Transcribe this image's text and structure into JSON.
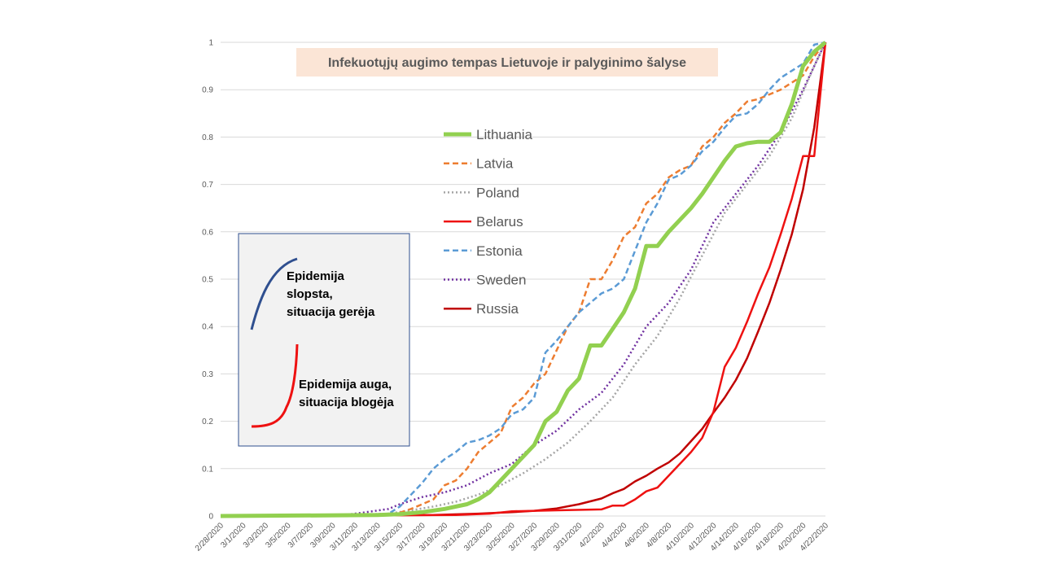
{
  "chart_data": {
    "type": "line",
    "title": "Infekuotųjų augimo tempas Lietuvoje ir palyginimo šalyse",
    "xlabel": "",
    "ylabel": "",
    "ylim": [
      0,
      1
    ],
    "y_ticks": [
      "0",
      "0.1",
      "0.2",
      "0.3",
      "0.4",
      "0.5",
      "0.6",
      "0.7",
      "0.8",
      "0.9",
      "1"
    ],
    "x_start": "2/28/2020",
    "x_end": "4/22/2020",
    "x_tick_labels": [
      "2/28/2020",
      "3/1/2020",
      "3/3/2020",
      "3/5/2020",
      "3/7/2020",
      "3/9/2020",
      "3/11/2020",
      "3/13/2020",
      "3/15/2020",
      "3/17/2020",
      "3/19/2020",
      "3/21/2020",
      "3/23/2020",
      "3/25/2020",
      "3/27/2020",
      "3/29/2020",
      "3/31/2020",
      "4/2/2020",
      "4/4/2020",
      "4/6/2020",
      "4/8/2020",
      "4/10/2020",
      "4/12/2020",
      "4/14/2020",
      "4/16/2020",
      "4/18/2020",
      "4/20/2020",
      "4/22/2020"
    ],
    "grid": true,
    "legend_position": "center",
    "series": [
      {
        "name": "Lithuania",
        "color": "#92D050",
        "style": "solid-thick",
        "points": [
          [
            "2/28/2020",
            0
          ],
          [
            "3/13/2020",
            0.002
          ],
          [
            "3/15/2020",
            0.004
          ],
          [
            "3/17/2020",
            0.008
          ],
          [
            "3/19/2020",
            0.015
          ],
          [
            "3/21/2020",
            0.025
          ],
          [
            "3/22/2020",
            0.035
          ],
          [
            "3/23/2020",
            0.05
          ],
          [
            "3/24/2020",
            0.075
          ],
          [
            "3/25/2020",
            0.1
          ],
          [
            "3/27/2020",
            0.15
          ],
          [
            "3/28/2020",
            0.2
          ],
          [
            "3/29/2020",
            0.22
          ],
          [
            "3/30/2020",
            0.265
          ],
          [
            "3/31/2020",
            0.29
          ],
          [
            "4/1/2020",
            0.36
          ],
          [
            "4/2/2020",
            0.36
          ],
          [
            "4/3/2020",
            0.395
          ],
          [
            "4/4/2020",
            0.43
          ],
          [
            "4/5/2020",
            0.48
          ],
          [
            "4/6/2020",
            0.57
          ],
          [
            "4/7/2020",
            0.57
          ],
          [
            "4/8/2020",
            0.6
          ],
          [
            "4/10/2020",
            0.65
          ],
          [
            "4/11/2020",
            0.68
          ],
          [
            "4/13/2020",
            0.75
          ],
          [
            "4/14/2020",
            0.78
          ],
          [
            "4/15/2020",
            0.787
          ],
          [
            "4/16/2020",
            0.79
          ],
          [
            "4/17/2020",
            0.79
          ],
          [
            "4/18/2020",
            0.81
          ],
          [
            "4/19/2020",
            0.87
          ],
          [
            "4/20/2020",
            0.95
          ],
          [
            "4/21/2020",
            0.98
          ],
          [
            "4/22/2020",
            1
          ]
        ]
      },
      {
        "name": "Latvia",
        "color": "#ED7D31",
        "style": "dashed",
        "points": [
          [
            "2/28/2020",
            0
          ],
          [
            "3/14/2020",
            0.002
          ],
          [
            "3/15/2020",
            0.007
          ],
          [
            "3/16/2020",
            0.015
          ],
          [
            "3/17/2020",
            0.025
          ],
          [
            "3/18/2020",
            0.035
          ],
          [
            "3/19/2020",
            0.065
          ],
          [
            "3/20/2020",
            0.075
          ],
          [
            "3/21/2020",
            0.1
          ],
          [
            "3/22/2020",
            0.135
          ],
          [
            "3/23/2020",
            0.155
          ],
          [
            "3/24/2020",
            0.175
          ],
          [
            "3/25/2020",
            0.23
          ],
          [
            "3/26/2020",
            0.25
          ],
          [
            "3/27/2020",
            0.28
          ],
          [
            "3/28/2020",
            0.3
          ],
          [
            "3/29/2020",
            0.35
          ],
          [
            "3/30/2020",
            0.4
          ],
          [
            "3/31/2020",
            0.43
          ],
          [
            "4/1/2020",
            0.5
          ],
          [
            "4/2/2020",
            0.5
          ],
          [
            "4/3/2020",
            0.54
          ],
          [
            "4/4/2020",
            0.59
          ],
          [
            "4/5/2020",
            0.61
          ],
          [
            "4/6/2020",
            0.66
          ],
          [
            "4/7/2020",
            0.68
          ],
          [
            "4/8/2020",
            0.715
          ],
          [
            "4/9/2020",
            0.73
          ],
          [
            "4/10/2020",
            0.74
          ],
          [
            "4/11/2020",
            0.78
          ],
          [
            "4/12/2020",
            0.8
          ],
          [
            "4/13/2020",
            0.83
          ],
          [
            "4/14/2020",
            0.85
          ],
          [
            "4/15/2020",
            0.875
          ],
          [
            "4/16/2020",
            0.88
          ],
          [
            "4/17/2020",
            0.89
          ],
          [
            "4/18/2020",
            0.9
          ],
          [
            "4/19/2020",
            0.915
          ],
          [
            "4/20/2020",
            0.93
          ],
          [
            "4/21/2020",
            0.97
          ],
          [
            "4/22/2020",
            1
          ]
        ]
      },
      {
        "name": "Poland",
        "color": "#A5A5A5",
        "style": "dotted",
        "points": [
          [
            "2/28/2020",
            0
          ],
          [
            "3/4/2020",
            0
          ],
          [
            "3/10/2020",
            0.002
          ],
          [
            "3/14/2020",
            0.005
          ],
          [
            "3/16/2020",
            0.012
          ],
          [
            "3/18/2020",
            0.02
          ],
          [
            "3/20/2020",
            0.03
          ],
          [
            "3/22/2020",
            0.045
          ],
          [
            "3/24/2020",
            0.065
          ],
          [
            "3/26/2020",
            0.09
          ],
          [
            "3/28/2020",
            0.12
          ],
          [
            "3/30/2020",
            0.155
          ],
          [
            "4/1/2020",
            0.2
          ],
          [
            "4/3/2020",
            0.25
          ],
          [
            "4/5/2020",
            0.32
          ],
          [
            "4/7/2020",
            0.38
          ],
          [
            "4/9/2020",
            0.46
          ],
          [
            "4/11/2020",
            0.55
          ],
          [
            "4/13/2020",
            0.64
          ],
          [
            "4/15/2020",
            0.7
          ],
          [
            "4/17/2020",
            0.76
          ],
          [
            "4/19/2020",
            0.84
          ],
          [
            "4/21/2020",
            0.95
          ],
          [
            "4/22/2020",
            1
          ]
        ]
      },
      {
        "name": "Belarus",
        "color": "#EE1111",
        "style": "solid",
        "points": [
          [
            "2/28/2020",
            0
          ],
          [
            "3/20/2020",
            0.002
          ],
          [
            "3/23/2020",
            0.005
          ],
          [
            "3/25/2020",
            0.01
          ],
          [
            "3/29/2020",
            0.012
          ],
          [
            "4/2/2020",
            0.014
          ],
          [
            "4/3/2020",
            0.022
          ],
          [
            "4/4/2020",
            0.022
          ],
          [
            "4/5/2020",
            0.035
          ],
          [
            "4/6/2020",
            0.052
          ],
          [
            "4/7/2020",
            0.06
          ],
          [
            "4/8/2020",
            0.085
          ],
          [
            "4/9/2020",
            0.11
          ],
          [
            "4/10/2020",
            0.135
          ],
          [
            "4/11/2020",
            0.165
          ],
          [
            "4/12/2020",
            0.22
          ],
          [
            "4/13/2020",
            0.315
          ],
          [
            "4/14/2020",
            0.355
          ],
          [
            "4/15/2020",
            0.41
          ],
          [
            "4/16/2020",
            0.47
          ],
          [
            "4/17/2020",
            0.525
          ],
          [
            "4/18/2020",
            0.595
          ],
          [
            "4/19/2020",
            0.67
          ],
          [
            "4/20/2020",
            0.76
          ],
          [
            "4/21/2020",
            0.76
          ],
          [
            "4/21/2020",
            0.76
          ],
          [
            "4/22/2020",
            1
          ]
        ]
      },
      {
        "name": "Estonia",
        "color": "#5B9BD5",
        "style": "dashed",
        "points": [
          [
            "2/28/2020",
            0
          ],
          [
            "3/3/2020",
            0.001
          ],
          [
            "3/13/2020",
            0.002
          ],
          [
            "3/14/2020",
            0.005
          ],
          [
            "3/15/2020",
            0.02
          ],
          [
            "3/16/2020",
            0.045
          ],
          [
            "3/17/2020",
            0.07
          ],
          [
            "3/18/2020",
            0.1
          ],
          [
            "3/19/2020",
            0.12
          ],
          [
            "3/20/2020",
            0.135
          ],
          [
            "3/21/2020",
            0.155
          ],
          [
            "3/22/2020",
            0.16
          ],
          [
            "3/23/2020",
            0.17
          ],
          [
            "3/24/2020",
            0.185
          ],
          [
            "3/25/2020",
            0.215
          ],
          [
            "3/26/2020",
            0.225
          ],
          [
            "3/27/2020",
            0.25
          ],
          [
            "3/28/2020",
            0.345
          ],
          [
            "3/29/2020",
            0.37
          ],
          [
            "3/30/2020",
            0.4
          ],
          [
            "3/31/2020",
            0.43
          ],
          [
            "4/1/2020",
            0.45
          ],
          [
            "4/2/2020",
            0.47
          ],
          [
            "4/3/2020",
            0.48
          ],
          [
            "4/4/2020",
            0.5
          ],
          [
            "4/5/2020",
            0.56
          ],
          [
            "4/6/2020",
            0.62
          ],
          [
            "4/7/2020",
            0.66
          ],
          [
            "4/8/2020",
            0.71
          ],
          [
            "4/9/2020",
            0.72
          ],
          [
            "4/10/2020",
            0.74
          ],
          [
            "4/11/2020",
            0.77
          ],
          [
            "4/12/2020",
            0.79
          ],
          [
            "4/13/2020",
            0.82
          ],
          [
            "4/14/2020",
            0.845
          ],
          [
            "4/15/2020",
            0.85
          ],
          [
            "4/16/2020",
            0.87
          ],
          [
            "4/17/2020",
            0.9
          ],
          [
            "4/18/2020",
            0.925
          ],
          [
            "4/19/2020",
            0.94
          ],
          [
            "4/20/2020",
            0.955
          ],
          [
            "4/21/2020",
            0.995
          ],
          [
            "4/22/2020",
            1
          ]
        ]
      },
      {
        "name": "Sweden",
        "color": "#7030A0",
        "style": "dotted",
        "points": [
          [
            "2/28/2020",
            0
          ],
          [
            "3/10/2020",
            0.002
          ],
          [
            "3/12/2020",
            0.008
          ],
          [
            "3/14/2020",
            0.015
          ],
          [
            "3/15/2020",
            0.025
          ],
          [
            "3/17/2020",
            0.04
          ],
          [
            "3/19/2020",
            0.05
          ],
          [
            "3/21/2020",
            0.065
          ],
          [
            "3/23/2020",
            0.09
          ],
          [
            "3/25/2020",
            0.11
          ],
          [
            "3/27/2020",
            0.15
          ],
          [
            "3/29/2020",
            0.18
          ],
          [
            "3/31/2020",
            0.225
          ],
          [
            "4/2/2020",
            0.26
          ],
          [
            "4/4/2020",
            0.32
          ],
          [
            "4/6/2020",
            0.4
          ],
          [
            "4/8/2020",
            0.45
          ],
          [
            "4/10/2020",
            0.52
          ],
          [
            "4/12/2020",
            0.62
          ],
          [
            "4/14/2020",
            0.68
          ],
          [
            "4/16/2020",
            0.74
          ],
          [
            "4/18/2020",
            0.81
          ],
          [
            "4/20/2020",
            0.9
          ],
          [
            "4/22/2020",
            1
          ]
        ]
      },
      {
        "name": "Russia",
        "color": "#C00000",
        "style": "solid",
        "points": [
          [
            "2/28/2020",
            0
          ],
          [
            "3/10/2020",
            0.001
          ],
          [
            "3/18/2020",
            0.002
          ],
          [
            "3/22/2020",
            0.005
          ],
          [
            "3/25/2020",
            0.008
          ],
          [
            "3/27/2020",
            0.011
          ],
          [
            "3/29/2020",
            0.016
          ],
          [
            "3/31/2020",
            0.025
          ],
          [
            "4/2/2020",
            0.037
          ],
          [
            "4/3/2020",
            0.048
          ],
          [
            "4/4/2020",
            0.057
          ],
          [
            "4/5/2020",
            0.073
          ],
          [
            "4/6/2020",
            0.085
          ],
          [
            "4/7/2020",
            0.1
          ],
          [
            "4/8/2020",
            0.113
          ],
          [
            "4/9/2020",
            0.132
          ],
          [
            "4/10/2020",
            0.158
          ],
          [
            "4/11/2020",
            0.184
          ],
          [
            "4/12/2020",
            0.218
          ],
          [
            "4/13/2020",
            0.25
          ],
          [
            "4/14/2020",
            0.287
          ],
          [
            "4/15/2020",
            0.333
          ],
          [
            "4/16/2020",
            0.39
          ],
          [
            "4/17/2020",
            0.45
          ],
          [
            "4/18/2020",
            0.52
          ],
          [
            "4/19/2020",
            0.595
          ],
          [
            "4/20/2020",
            0.69
          ],
          [
            "4/21/2020",
            0.82
          ],
          [
            "4/22/2020",
            1
          ]
        ]
      }
    ]
  },
  "inset": {
    "decline_text": [
      "Epidemija",
      "slopsta,",
      "situacija gerėja"
    ],
    "decline_color": "#2F4F8F",
    "growth_text": [
      "Epidemija auga,",
      "situacija blogėja"
    ],
    "growth_color": "#EE1111"
  }
}
